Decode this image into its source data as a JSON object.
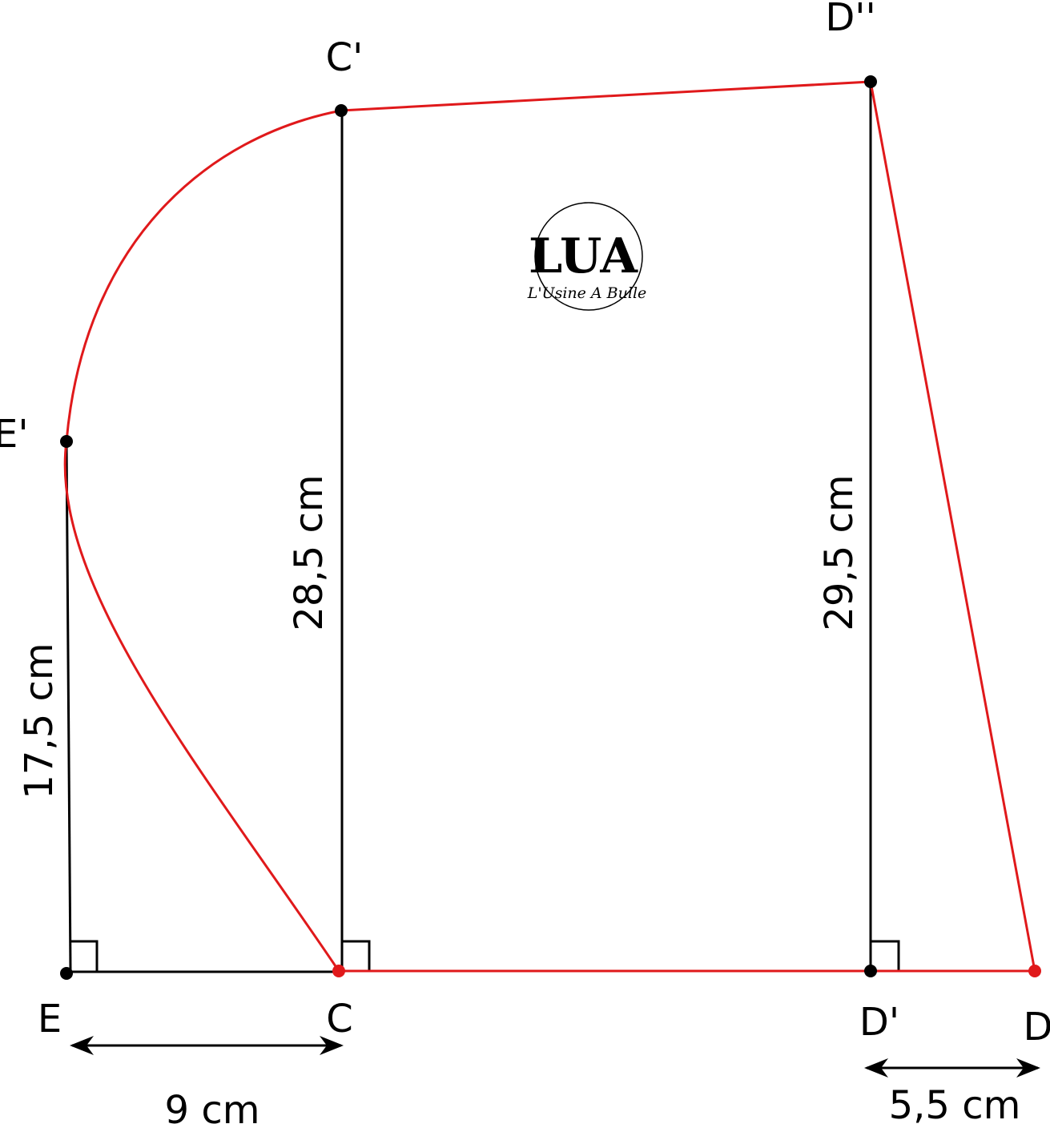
{
  "points": {
    "E_prime": "E'",
    "C_prime": "C'",
    "D_double_prime": "D''",
    "E": "E",
    "C": "C",
    "D_prime": "D'",
    "D": "D"
  },
  "dimensions": {
    "e_height": "17,5 cm",
    "c_height": "28,5 cm",
    "d_height": "29,5 cm",
    "ec_width": "9 cm",
    "dd_width": "5,5 cm"
  },
  "logo": {
    "mark": "LUA",
    "name": "L'Usine A Bulle"
  }
}
